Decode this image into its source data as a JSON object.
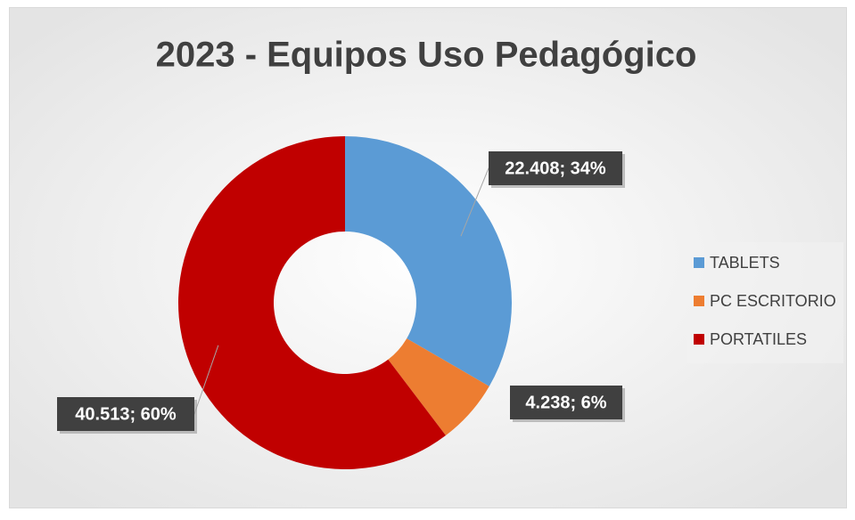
{
  "chart_data": {
    "type": "donut",
    "title": "2023 - Equipos Uso Pedagógico",
    "categories": [
      "TABLETS",
      "PC ESCRITORIO",
      "PORTATILES"
    ],
    "values": [
      22408,
      4238,
      40513
    ],
    "value_labels": [
      "22.408; 34%",
      "4.238; 6%",
      "40.513; 60%"
    ],
    "colors": [
      "#5b9bd5",
      "#ed7d31",
      "#c00000"
    ],
    "legend": "right"
  }
}
